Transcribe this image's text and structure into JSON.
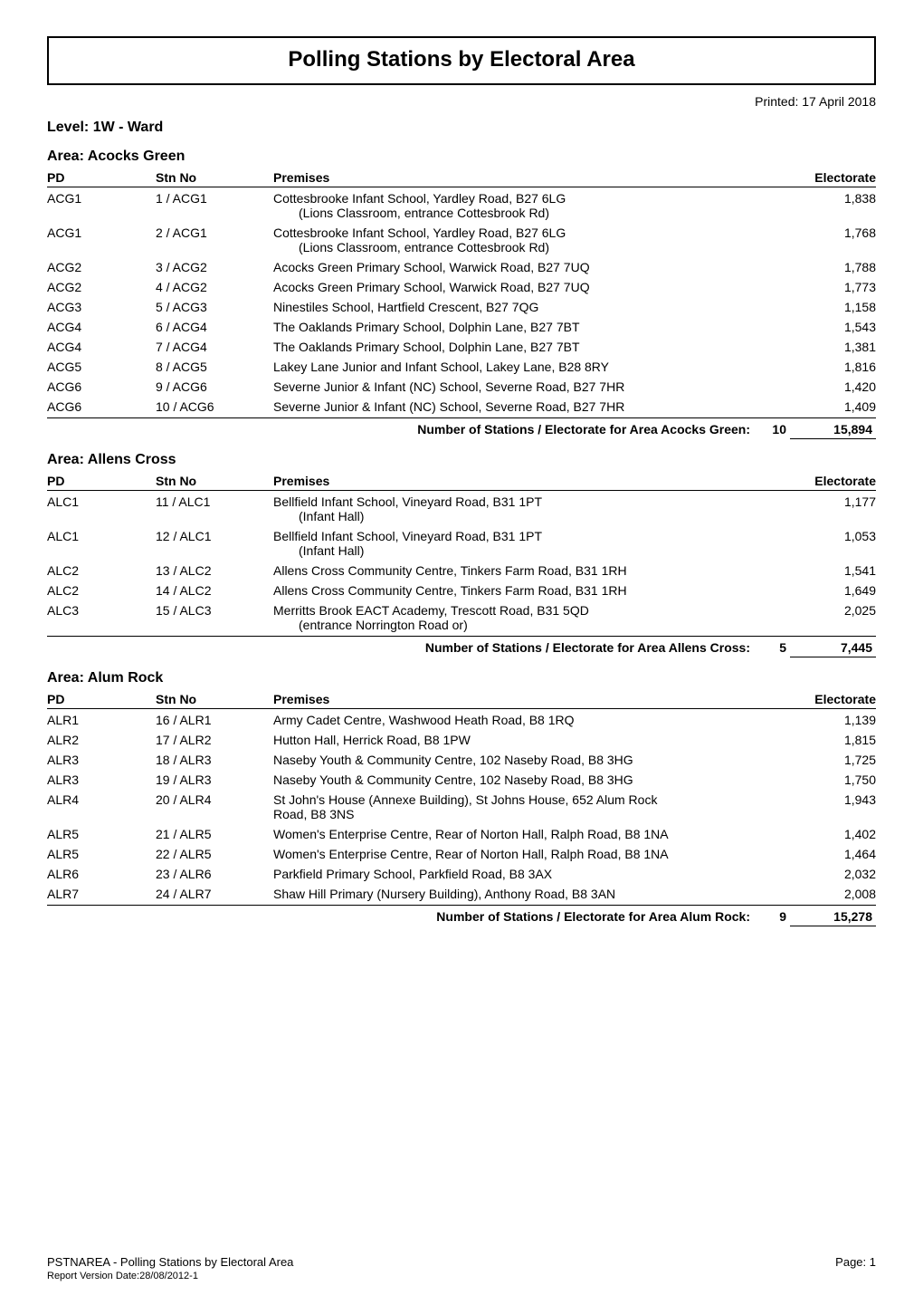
{
  "page": {
    "title": "Polling Stations by Electoral Area",
    "printed": "Printed: 17 April 2018",
    "level": "Level: 1W - Ward",
    "colors": {
      "text": "#000000",
      "background": "#ffffff",
      "border": "#000000"
    },
    "fonts": {
      "title_size": 24,
      "heading_size": 16,
      "body_size": 14,
      "footer_small": 11
    },
    "col_headers": {
      "pd": "PD",
      "stn": "Stn No",
      "prem": "Premises",
      "elec": "Electorate"
    }
  },
  "areas": [
    {
      "name": "Area: Acocks Green",
      "rows": [
        {
          "pd": "ACG1",
          "stn": "1 / ACG1",
          "prem": "Cottesbrooke Infant School, Yardley Road, B27 6LG",
          "prem2": "(Lions Classroom, entrance  Cottesbrook Rd)",
          "elec": "1,838"
        },
        {
          "pd": "ACG1",
          "stn": "2 / ACG1",
          "prem": "Cottesbrooke Infant School, Yardley Road, B27 6LG",
          "prem2": "(Lions Classroom, entrance  Cottesbrook Rd)",
          "elec": "1,768"
        },
        {
          "pd": "ACG2",
          "stn": "3 / ACG2",
          "prem": "Acocks Green Primary School, Warwick Road, B27 7UQ",
          "elec": "1,788"
        },
        {
          "pd": "ACG2",
          "stn": "4 / ACG2",
          "prem": "Acocks Green Primary School, Warwick Road, B27 7UQ",
          "elec": "1,773"
        },
        {
          "pd": "ACG3",
          "stn": "5 / ACG3",
          "prem": "Ninestiles School, Hartfield Crescent, B27 7QG",
          "elec": "1,158"
        },
        {
          "pd": "ACG4",
          "stn": "6 / ACG4",
          "prem": "The Oaklands Primary School, Dolphin Lane, B27 7BT",
          "elec": "1,543"
        },
        {
          "pd": "ACG4",
          "stn": "7 / ACG4",
          "prem": "The Oaklands Primary School, Dolphin Lane, B27 7BT",
          "elec": "1,381"
        },
        {
          "pd": "ACG5",
          "stn": "8 / ACG5",
          "prem": "Lakey Lane Junior and Infant School, Lakey Lane, B28 8RY",
          "elec": "1,816"
        },
        {
          "pd": "ACG6",
          "stn": "9 / ACG6",
          "prem": "Severne Junior & Infant (NC) School, Severne Road, B27 7HR",
          "elec": "1,420"
        },
        {
          "pd": "ACG6",
          "stn": "10 / ACG6",
          "prem": "Severne Junior & Infant (NC) School, Severne Road, B27 7HR",
          "elec": "1,409"
        }
      ],
      "summary": {
        "label": "Number of Stations / Electorate for Area Acocks Green:",
        "count": "10",
        "total": "15,894"
      }
    },
    {
      "name": "Area: Allens Cross",
      "rows": [
        {
          "pd": "ALC1",
          "stn": "11 / ALC1",
          "prem": "Bellfield Infant School, Vineyard Road, B31 1PT",
          "prem2": "(Infant Hall)",
          "elec": "1,177"
        },
        {
          "pd": "ALC1",
          "stn": "12 / ALC1",
          "prem": "Bellfield Infant School, Vineyard Road, B31 1PT",
          "prem2": "(Infant Hall)",
          "elec": "1,053"
        },
        {
          "pd": "ALC2",
          "stn": "13 / ALC2",
          "prem": "Allens Cross Community Centre, Tinkers Farm Road, B31 1RH",
          "elec": "1,541"
        },
        {
          "pd": "ALC2",
          "stn": "14 / ALC2",
          "prem": "Allens Cross Community Centre, Tinkers Farm Road, B31 1RH",
          "elec": "1,649"
        },
        {
          "pd": "ALC3",
          "stn": "15 / ALC3",
          "prem": "Merritts Brook EACT Academy, Trescott Road, B31 5QD",
          "prem2": "(entrance Norrington Road or)",
          "elec": "2,025"
        }
      ],
      "summary": {
        "label": "Number of Stations / Electorate for Area Allens Cross:",
        "count": "5",
        "total": "7,445"
      }
    },
    {
      "name": "Area: Alum Rock",
      "rows": [
        {
          "pd": "ALR1",
          "stn": "16 / ALR1",
          "prem": "Army Cadet Centre, Washwood Heath Road, B8 1RQ",
          "elec": "1,139"
        },
        {
          "pd": "ALR2",
          "stn": "17 / ALR2",
          "prem": "Hutton Hall, Herrick Road, B8 1PW",
          "elec": "1,815"
        },
        {
          "pd": "ALR3",
          "stn": "18 / ALR3",
          "prem": "Naseby Youth & Community Centre, 102 Naseby Road, B8 3HG",
          "elec": "1,725"
        },
        {
          "pd": "ALR3",
          "stn": "19 / ALR3",
          "prem": "Naseby Youth & Community Centre, 102 Naseby Road, B8 3HG",
          "elec": "1,750"
        },
        {
          "pd": "ALR4",
          "stn": "20 / ALR4",
          "prem": "St John's House (Annexe Building), St Johns House, 652 Alum Rock",
          "prem2b": "Road, B8 3NS",
          "elec": "1,943"
        },
        {
          "pd": "ALR5",
          "stn": "21 / ALR5",
          "prem": "Women's Enterprise Centre, Rear of Norton Hall, Ralph Road, B8 1NA",
          "elec": "1,402"
        },
        {
          "pd": "ALR5",
          "stn": "22 / ALR5",
          "prem": "Women's Enterprise Centre, Rear of Norton Hall, Ralph Road, B8 1NA",
          "elec": "1,464"
        },
        {
          "pd": "ALR6",
          "stn": "23 / ALR6",
          "prem": "Parkfield Primary School, Parkfield Road, B8 3AX",
          "elec": "2,032"
        },
        {
          "pd": "ALR7",
          "stn": "24 / ALR7",
          "prem": "Shaw Hill Primary (Nursery Building), Anthony Road, B8 3AN",
          "elec": "2,008"
        }
      ],
      "summary": {
        "label": "Number of Stations / Electorate for Area Alum Rock:",
        "count": "9",
        "total": "15,278"
      }
    }
  ],
  "footer": {
    "line1": "PSTNAREA - Polling Stations by Electoral Area",
    "page_label": "Page: 1",
    "line2": "Report Version Date:28/08/2012-1"
  }
}
